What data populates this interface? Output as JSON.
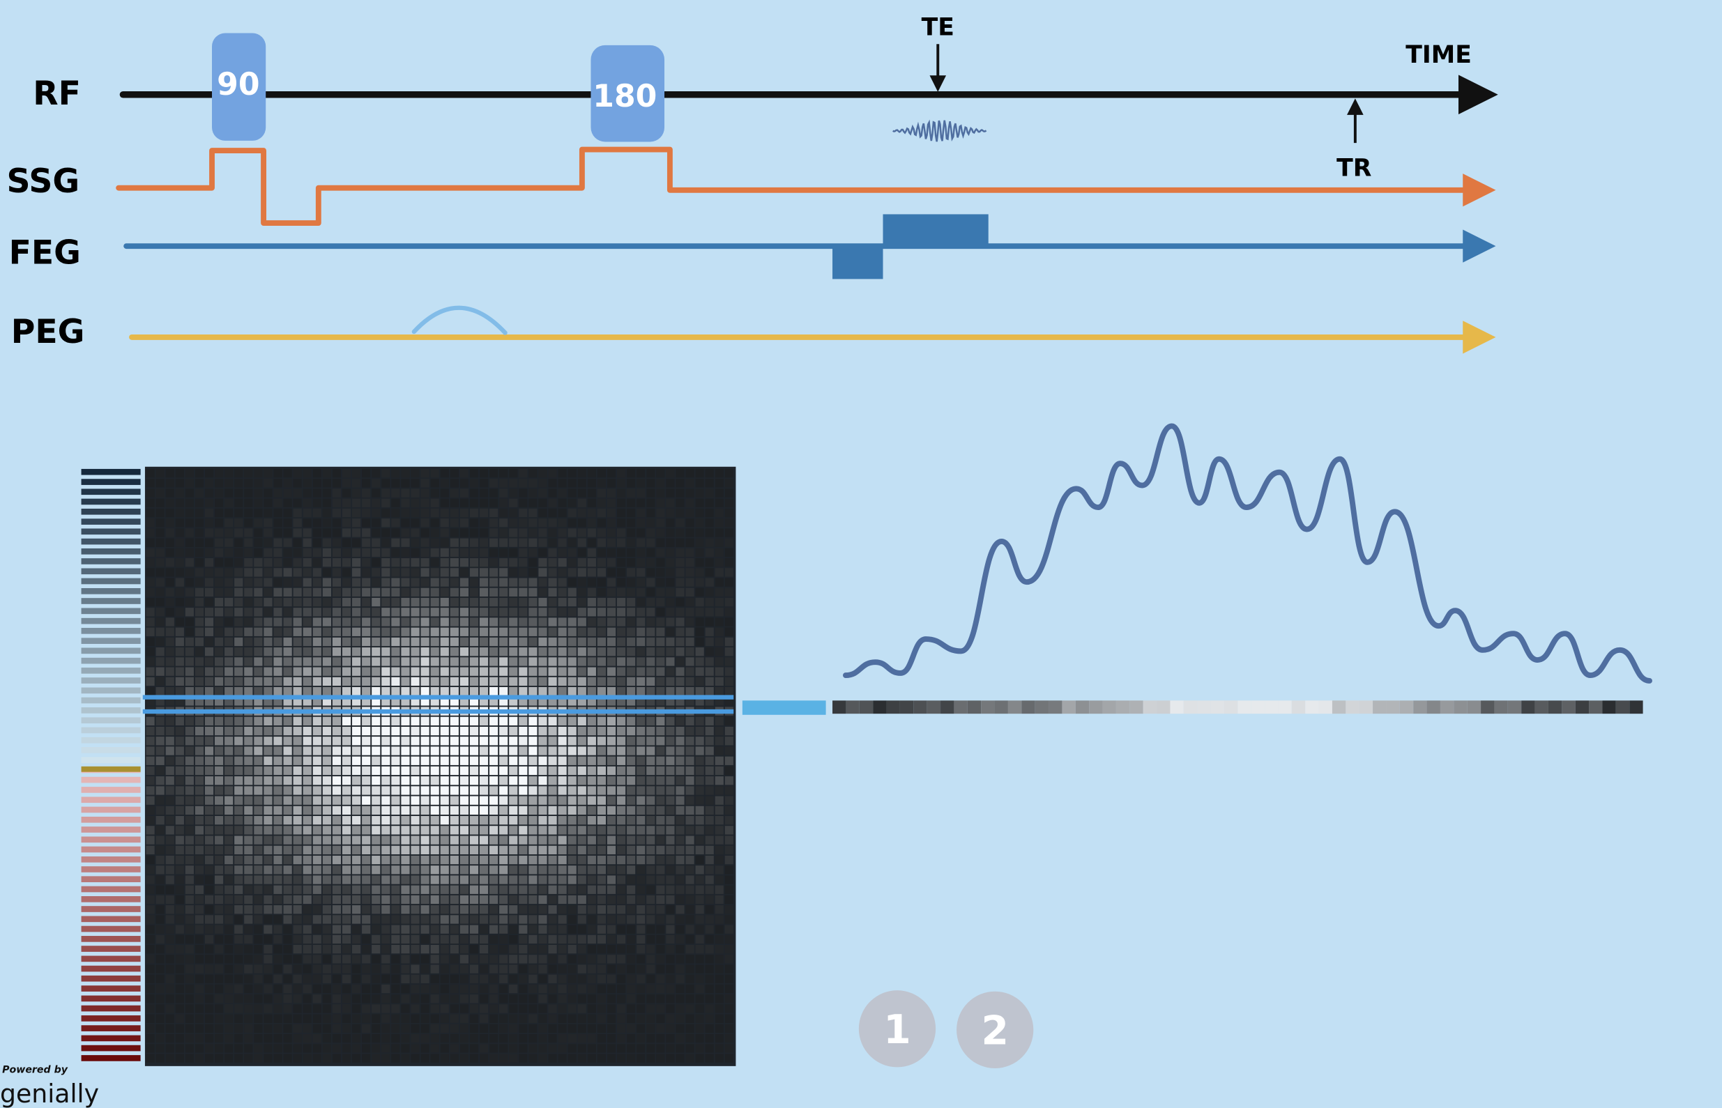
{
  "labels": {
    "rf": "RF",
    "ssg": "SSG",
    "feg": "FEG",
    "peg": "PEG",
    "time": "TIME",
    "te": "TE",
    "tr": "TR"
  },
  "pulses": {
    "p90": "90",
    "p180": "180"
  },
  "colors": {
    "background": "#c2e0f4",
    "rf": "#111111",
    "ssg": "#e07841",
    "feg": "#3a78b0",
    "peg": "#e6b84a",
    "pulse": "#73a3e0",
    "phase_lobe": "#82bce8",
    "signal": "#4f6ea0",
    "nav_button": "#bfc4cf"
  },
  "navigation": {
    "buttons": [
      "1",
      "2"
    ]
  },
  "branding": {
    "powered_by": "Powered by",
    "logo": "genially"
  }
}
